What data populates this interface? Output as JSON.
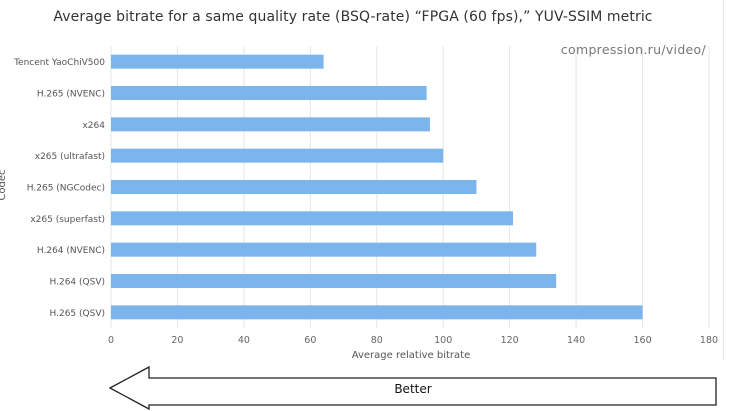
{
  "chart_data": {
    "type": "bar",
    "orientation": "horizontal",
    "title": "Average bitrate for a same quality rate (BSQ-rate) “FPGA (60 fps),” YUV-SSIM metric",
    "watermark": "compression.ru/video/",
    "xlabel": "Average relative bitrate",
    "ylabel": "Codec",
    "xlim": [
      0,
      180
    ],
    "xticks": [
      0,
      20,
      40,
      60,
      80,
      100,
      120,
      140,
      160,
      180
    ],
    "grid": "vertical",
    "bar_color": "#7cb5ec",
    "categories": [
      "Tencent YaoChiV500",
      "H.265 (NVENC)",
      "x264",
      "x265 (ultrafast)",
      "H.265 (NGCodec)",
      "x265 (superfast)",
      "H.264 (NVENC)",
      "H.264 (QSV)",
      "H.265 (QSV)"
    ],
    "values": [
      64,
      95,
      96,
      100,
      110,
      121,
      128,
      134,
      160
    ]
  },
  "annotation": {
    "arrow_label": "Better",
    "direction": "left"
  }
}
